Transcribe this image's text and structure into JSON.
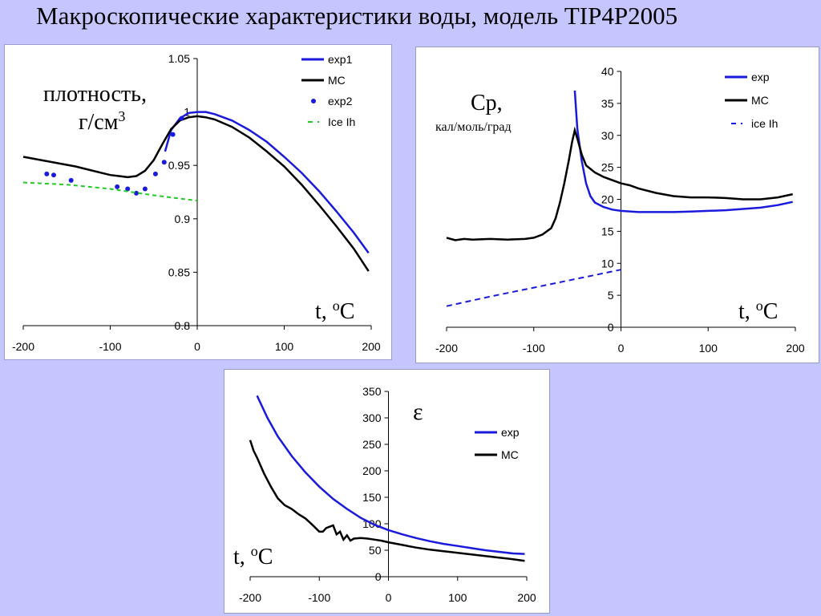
{
  "slide": {
    "title": "Макроскопические характеристики воды, модель TIP4P2005"
  },
  "colors": {
    "exp": "#1a1adc",
    "mc": "#000000",
    "ice": "#22cc22",
    "background": "#c6c6ff"
  },
  "charts": {
    "density": {
      "ylabel_line1": "плотность,",
      "ylabel_line2_base": "г/см",
      "ylabel_line2_sup": "3",
      "xlabel_pre": "t, ",
      "xlabel_sup": "o",
      "xlabel_post": "C"
    },
    "cp": {
      "ylabel_line1": "Cp,",
      "ylabel_line2": "кал/моль/град",
      "xlabel_pre": "t, ",
      "xlabel_sup": "o",
      "xlabel_post": "C"
    },
    "eps": {
      "symbol": "ε",
      "xlabel_pre": "t, ",
      "xlabel_sup": "o",
      "xlabel_post": "C"
    }
  },
  "chart_data": [
    {
      "type": "line",
      "id": "density",
      "xlim": [
        -200,
        200
      ],
      "ylim": [
        0.8,
        1.05
      ],
      "xticks": [
        -200,
        -100,
        0,
        100,
        200
      ],
      "yticks": [
        0.8,
        0.85,
        0.9,
        0.95,
        1,
        1.05
      ],
      "ytick_labels": [
        "0.8",
        "0.85",
        "0.9",
        "0.95",
        "1",
        "1.05"
      ],
      "grid": false,
      "legend_position": "top-right",
      "series": [
        {
          "name": "exp1",
          "style": "line",
          "color": "#1a1adc",
          "points": [
            [
              -37,
              0.963
            ],
            [
              -30,
              0.983
            ],
            [
              -20,
              0.994
            ],
            [
              -10,
              0.999
            ],
            [
              0,
              1.0
            ],
            [
              10,
              1.0
            ],
            [
              20,
              0.998
            ],
            [
              40,
              0.992
            ],
            [
              60,
              0.983
            ],
            [
              80,
              0.972
            ],
            [
              100,
              0.958
            ],
            [
              120,
              0.943
            ],
            [
              140,
              0.926
            ],
            [
              160,
              0.907
            ],
            [
              180,
              0.887
            ],
            [
              197,
              0.868
            ]
          ]
        },
        {
          "name": "MC",
          "style": "line",
          "color": "#000000",
          "points": [
            [
              -200,
              0.958
            ],
            [
              -180,
              0.955
            ],
            [
              -160,
              0.952
            ],
            [
              -140,
              0.949
            ],
            [
              -120,
              0.945
            ],
            [
              -100,
              0.941
            ],
            [
              -90,
              0.94
            ],
            [
              -80,
              0.939
            ],
            [
              -70,
              0.94
            ],
            [
              -60,
              0.945
            ],
            [
              -50,
              0.955
            ],
            [
              -40,
              0.97
            ],
            [
              -30,
              0.984
            ],
            [
              -20,
              0.992
            ],
            [
              -10,
              0.995
            ],
            [
              0,
              0.996
            ],
            [
              10,
              0.995
            ],
            [
              20,
              0.993
            ],
            [
              40,
              0.986
            ],
            [
              60,
              0.976
            ],
            [
              80,
              0.963
            ],
            [
              100,
              0.949
            ],
            [
              120,
              0.932
            ],
            [
              140,
              0.913
            ],
            [
              160,
              0.893
            ],
            [
              180,
              0.872
            ],
            [
              197,
              0.851
            ]
          ]
        },
        {
          "name": "exp2",
          "style": "points",
          "color": "#1a1adc",
          "points": [
            [
              -173,
              0.942
            ],
            [
              -165,
              0.941
            ],
            [
              -145,
              0.936
            ],
            [
              -92,
              0.93
            ],
            [
              -80,
              0.928
            ],
            [
              -70,
              0.924
            ],
            [
              -60,
              0.928
            ],
            [
              -48,
              0.942
            ],
            [
              -38,
              0.953
            ],
            [
              -28,
              0.979
            ],
            [
              -18,
              0.994
            ]
          ]
        },
        {
          "name": "Ice Ih",
          "style": "dashed",
          "color": "#22cc22",
          "points": [
            [
              -200,
              0.934
            ],
            [
              -150,
              0.932
            ],
            [
              -100,
              0.928
            ],
            [
              -50,
              0.922
            ],
            [
              0,
              0.917
            ]
          ]
        }
      ]
    },
    {
      "type": "line",
      "id": "cp",
      "xlim": [
        -200,
        200
      ],
      "ylim": [
        0,
        40
      ],
      "xticks": [
        -200,
        -100,
        0,
        100,
        200
      ],
      "yticks": [
        0,
        5,
        10,
        15,
        20,
        25,
        30,
        35,
        40
      ],
      "ytick_labels": [
        "0",
        "5",
        "10",
        "15",
        "20",
        "25",
        "30",
        "35",
        "40"
      ],
      "grid": false,
      "legend_position": "top-right",
      "series": [
        {
          "name": "exp",
          "style": "line",
          "color": "#1a1adc",
          "points": [
            [
              -53,
              37
            ],
            [
              -50,
              31
            ],
            [
              -45,
              26
            ],
            [
              -40,
              22.5
            ],
            [
              -35,
              20.5
            ],
            [
              -30,
              19.5
            ],
            [
              -20,
              18.8
            ],
            [
              -10,
              18.4
            ],
            [
              0,
              18.2
            ],
            [
              20,
              18.0
            ],
            [
              40,
              18.0
            ],
            [
              60,
              18.0
            ],
            [
              80,
              18.1
            ],
            [
              100,
              18.2
            ],
            [
              120,
              18.3
            ],
            [
              140,
              18.5
            ],
            [
              160,
              18.7
            ],
            [
              180,
              19.1
            ],
            [
              197,
              19.6
            ]
          ]
        },
        {
          "name": "MC",
          "style": "line",
          "color": "#000000",
          "points": [
            [
              -200,
              14.0
            ],
            [
              -190,
              13.6
            ],
            [
              -180,
              13.8
            ],
            [
              -170,
              13.7
            ],
            [
              -150,
              13.8
            ],
            [
              -130,
              13.7
            ],
            [
              -110,
              13.8
            ],
            [
              -100,
              14.0
            ],
            [
              -90,
              14.5
            ],
            [
              -80,
              15.5
            ],
            [
              -75,
              17.0
            ],
            [
              -70,
              19.5
            ],
            [
              -65,
              22.5
            ],
            [
              -60,
              26.0
            ],
            [
              -56,
              29.0
            ],
            [
              -53,
              30.8
            ],
            [
              -50,
              29.5
            ],
            [
              -45,
              27.0
            ],
            [
              -40,
              25.3
            ],
            [
              -30,
              24.2
            ],
            [
              -20,
              23.5
            ],
            [
              -10,
              23.0
            ],
            [
              0,
              22.5
            ],
            [
              10,
              22.2
            ],
            [
              20,
              21.7
            ],
            [
              40,
              21.0
            ],
            [
              60,
              20.5
            ],
            [
              80,
              20.3
            ],
            [
              100,
              20.3
            ],
            [
              120,
              20.2
            ],
            [
              140,
              20.0
            ],
            [
              160,
              20.0
            ],
            [
              180,
              20.3
            ],
            [
              197,
              20.8
            ]
          ]
        },
        {
          "name": "ice Ih",
          "style": "dashed",
          "color": "#1a1adc",
          "points": [
            [
              -200,
              3.3
            ],
            [
              -150,
              4.8
            ],
            [
              -100,
              6.2
            ],
            [
              -50,
              7.6
            ],
            [
              0,
              9.0
            ]
          ]
        }
      ]
    },
    {
      "type": "line",
      "id": "eps",
      "xlim": [
        -200,
        200
      ],
      "ylim": [
        0,
        350
      ],
      "xticks": [
        -200,
        -100,
        0,
        100,
        200
      ],
      "yticks": [
        0,
        50,
        100,
        150,
        200,
        250,
        300,
        350
      ],
      "ytick_labels": [
        "0",
        "50",
        "100",
        "150",
        "200",
        "250",
        "300",
        "350"
      ],
      "grid": false,
      "legend_position": "right",
      "series": [
        {
          "name": "exp",
          "style": "line",
          "color": "#1a1adc",
          "points": [
            [
              -190,
              342
            ],
            [
              -175,
              300
            ],
            [
              -160,
              265
            ],
            [
              -140,
              228
            ],
            [
              -120,
              197
            ],
            [
              -100,
              170
            ],
            [
              -80,
              147
            ],
            [
              -60,
              128
            ],
            [
              -40,
              111
            ],
            [
              -20,
              98
            ],
            [
              0,
              88
            ],
            [
              20,
              80
            ],
            [
              40,
              73
            ],
            [
              60,
              67
            ],
            [
              80,
              62
            ],
            [
              100,
              58
            ],
            [
              120,
              54
            ],
            [
              140,
              50
            ],
            [
              160,
              47
            ],
            [
              180,
              44
            ],
            [
              197,
              43
            ]
          ]
        },
        {
          "name": "MC",
          "style": "line",
          "color": "#000000",
          "points": [
            [
              -200,
              258
            ],
            [
              -195,
              238
            ],
            [
              -190,
              225
            ],
            [
              -180,
              195
            ],
            [
              -170,
              170
            ],
            [
              -160,
              148
            ],
            [
              -150,
              135
            ],
            [
              -140,
              128
            ],
            [
              -130,
              118
            ],
            [
              -120,
              110
            ],
            [
              -110,
              98
            ],
            [
              -100,
              85
            ],
            [
              -95,
              85
            ],
            [
              -90,
              92
            ],
            [
              -80,
              97
            ],
            [
              -75,
              80
            ],
            [
              -70,
              85
            ],
            [
              -65,
              70
            ],
            [
              -60,
              78
            ],
            [
              -55,
              68
            ],
            [
              -50,
              72
            ],
            [
              -40,
              73
            ],
            [
              -30,
              72
            ],
            [
              -20,
              70
            ],
            [
              -10,
              68
            ],
            [
              0,
              65
            ],
            [
              20,
              60
            ],
            [
              40,
              55
            ],
            [
              60,
              51
            ],
            [
              80,
              48
            ],
            [
              100,
              45
            ],
            [
              120,
              42
            ],
            [
              140,
              39
            ],
            [
              160,
              36
            ],
            [
              180,
              33
            ],
            [
              197,
              30
            ]
          ]
        }
      ]
    }
  ]
}
